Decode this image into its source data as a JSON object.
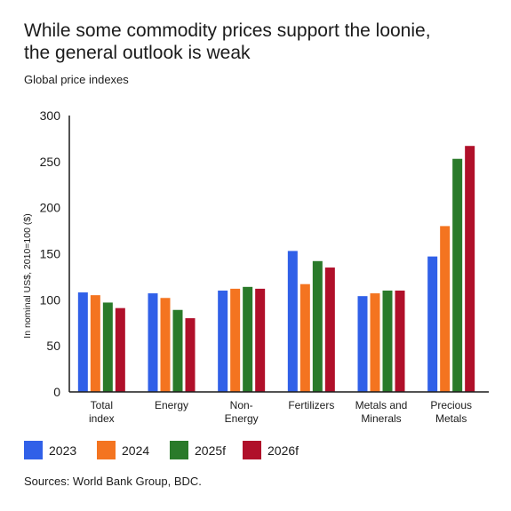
{
  "title_lines": [
    "While some commodity prices support the loonie,",
    "the general outlook is weak"
  ],
  "subtitle": "Global price indexes",
  "source": "Sources: World Bank Group, BDC.",
  "colors": {
    "2023": "#3060e8",
    "2024": "#f47420",
    "2025f": "#2a7a2a",
    "2026f": "#b0102a",
    "axis": "#1a1a1a"
  },
  "chart_data": {
    "type": "bar",
    "ylabel": "In nominal US$, 2010=100 ($)",
    "ylim": [
      0,
      300
    ],
    "yticks": [
      0,
      50,
      100,
      150,
      200,
      250,
      300
    ],
    "grid": false,
    "legend_position": "bottom-left",
    "categories": [
      [
        "Total",
        "index"
      ],
      [
        "Energy"
      ],
      [
        "Non-",
        "Energy"
      ],
      [
        "Fertilizers"
      ],
      [
        "Metals and",
        "Minerals"
      ],
      [
        "Precious",
        "Metals"
      ]
    ],
    "series": [
      {
        "name": "2023",
        "values": [
          108,
          107,
          110,
          153,
          104,
          147
        ]
      },
      {
        "name": "2024",
        "values": [
          105,
          102,
          112,
          117,
          107,
          180
        ]
      },
      {
        "name": "2025f",
        "values": [
          97,
          89,
          114,
          142,
          110,
          253
        ]
      },
      {
        "name": "2026f",
        "values": [
          91,
          80,
          112,
          135,
          110,
          267
        ]
      }
    ]
  }
}
